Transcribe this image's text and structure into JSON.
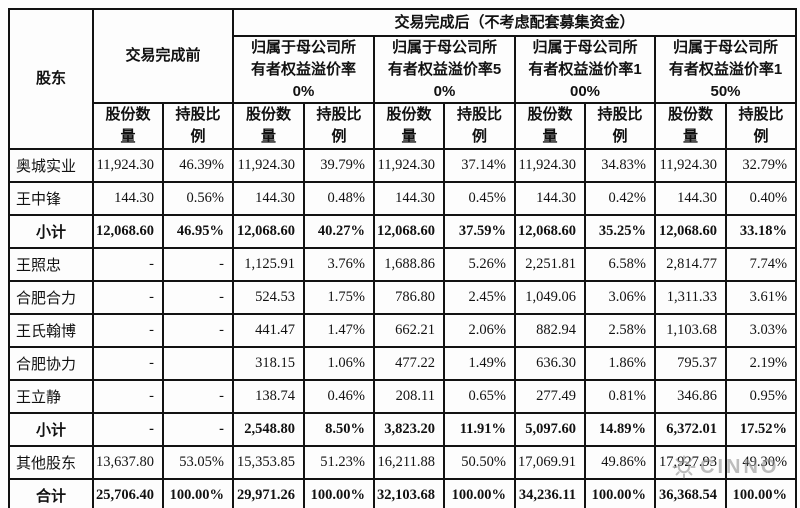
{
  "page": {
    "background": "#ffffff",
    "border_color": "#121212"
  },
  "watermark": {
    "text": "CINNO",
    "icon": "sun-icon"
  },
  "table": {
    "header": {
      "shareholder_label": "股东",
      "before_label": "交易完成前",
      "after_label": "交易完成后（不考虑配套募集资金）",
      "premium_groups": [
        "归属于母公司所有者权益溢价率0%",
        "归属于母公司所有者权益溢价率50%",
        "归属于母公司所有者权益溢价率100%",
        "归属于母公司所有者权益溢价率150%"
      ],
      "shares_label": "股份数量",
      "ratio_label": "持股比例"
    },
    "rows": [
      {
        "name": "奥城实业",
        "bold": false,
        "cells": [
          "11,924.30",
          "46.39%",
          "11,924.30",
          "39.79%",
          "11,924.30",
          "37.14%",
          "11,924.30",
          "34.83%",
          "11,924.30",
          "32.79%"
        ]
      },
      {
        "name": "王中锋",
        "bold": false,
        "cells": [
          "144.30",
          "0.56%",
          "144.30",
          "0.48%",
          "144.30",
          "0.45%",
          "144.30",
          "0.42%",
          "144.30",
          "0.40%"
        ]
      },
      {
        "name": "小计",
        "bold": true,
        "cells": [
          "12,068.60",
          "46.95%",
          "12,068.60",
          "40.27%",
          "12,068.60",
          "37.59%",
          "12,068.60",
          "35.25%",
          "12,068.60",
          "33.18%"
        ]
      },
      {
        "name": "王照忠",
        "bold": false,
        "cells": [
          "-",
          "-",
          "1,125.91",
          "3.76%",
          "1,688.86",
          "5.26%",
          "2,251.81",
          "6.58%",
          "2,814.77",
          "7.74%"
        ]
      },
      {
        "name": "合肥合力",
        "bold": false,
        "cells": [
          "-",
          "-",
          "524.53",
          "1.75%",
          "786.80",
          "2.45%",
          "1,049.06",
          "3.06%",
          "1,311.33",
          "3.61%"
        ]
      },
      {
        "name": "王氏翰博",
        "bold": false,
        "cells": [
          "-",
          "-",
          "441.47",
          "1.47%",
          "662.21",
          "2.06%",
          "882.94",
          "2.58%",
          "1,103.68",
          "3.03%"
        ]
      },
      {
        "name": "合肥协力",
        "bold": false,
        "cells": [
          "-",
          "",
          "318.15",
          "1.06%",
          "477.22",
          "1.49%",
          "636.30",
          "1.86%",
          "795.37",
          "2.19%"
        ]
      },
      {
        "name": "王立静",
        "bold": false,
        "cells": [
          "-",
          "-",
          "138.74",
          "0.46%",
          "208.11",
          "0.65%",
          "277.49",
          "0.81%",
          "346.86",
          "0.95%"
        ]
      },
      {
        "name": "小计",
        "bold": true,
        "cells": [
          "-",
          "-",
          "2,548.80",
          "8.50%",
          "3,823.20",
          "11.91%",
          "5,097.60",
          "14.89%",
          "6,372.01",
          "17.52%"
        ]
      },
      {
        "name": "其他股东",
        "bold": false,
        "cells": [
          "13,637.80",
          "53.05%",
          "15,353.85",
          "51.23%",
          "16,211.88",
          "50.50%",
          "17,069.91",
          "49.86%",
          "17,927.93",
          "49.30%"
        ]
      },
      {
        "name": "合计",
        "bold": true,
        "cells": [
          "25,706.40",
          "100.00%",
          "29,971.26",
          "100.00%",
          "32,103.68",
          "100.00%",
          "34,236.11",
          "100.00%",
          "36,368.54",
          "100.00%"
        ]
      }
    ]
  }
}
